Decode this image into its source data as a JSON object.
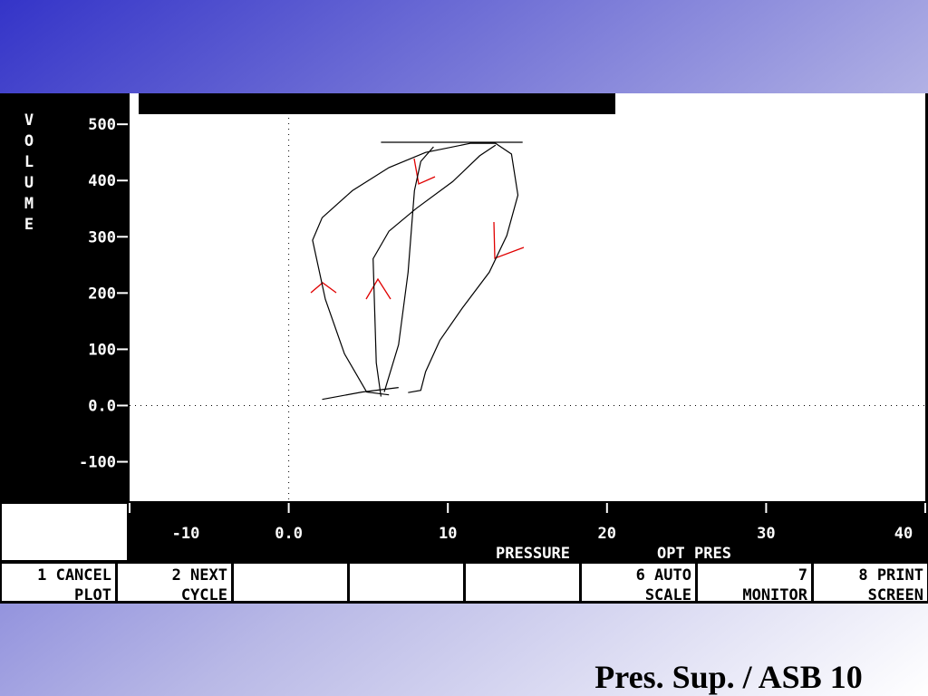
{
  "chart_data": {
    "type": "line",
    "y_label": "VOLUME",
    "x_label": "PRESSURE",
    "mode_label": "OPT PRES",
    "x": [
      6.3,
      4.9,
      3.5,
      2.3,
      1.5,
      2.1,
      4.0,
      6.3,
      8.6,
      11.4,
      13.0,
      14.0,
      14.4,
      13.7,
      12.6,
      10.9,
      9.5,
      8.6,
      8.3,
      7.5,
      null,
      5.8,
      5.5,
      5.3,
      6.3,
      8.0,
      10.3,
      12.0,
      13.0,
      null,
      6.0,
      6.9,
      7.5,
      7.9,
      8.3,
      9.1,
      null,
      2.1,
      4.6,
      6.9,
      null,
      5.8,
      14.7
    ],
    "series": [
      {
        "color": "#000000",
        "values": [
          19,
          24,
          92,
          189,
          294,
          334,
          382,
          423,
          450,
          466,
          466,
          447,
          374,
          302,
          237,
          173,
          116,
          60,
          27,
          23,
          null,
          16,
          76,
          261,
          310,
          350,
          398,
          444,
          463,
          null,
          24,
          108,
          237,
          382,
          434,
          460,
          null,
          11,
          24,
          32,
          null,
          468,
          468
        ]
      }
    ],
    "xlim": [
      -10,
      40
    ],
    "ylim": [
      -170,
      555
    ],
    "xticks": [
      -10,
      {
        "value": 0,
        "label": "0.0"
      },
      10,
      20,
      30,
      40
    ],
    "yticks": [
      500,
      400,
      300,
      200,
      100,
      {
        "value": 0,
        "label": "0.0"
      },
      -100
    ]
  },
  "softkeys": [
    [
      "1 CANCEL",
      "PLOT"
    ],
    [
      "2 NEXT",
      "CYCLE"
    ],
    [
      "6 AUTO",
      "SCALE"
    ],
    [
      "7",
      "MONITOR"
    ],
    [
      "8  PRINT",
      "SCREEN"
    ]
  ],
  "caption": "Pres. Sup. / ASB 10"
}
